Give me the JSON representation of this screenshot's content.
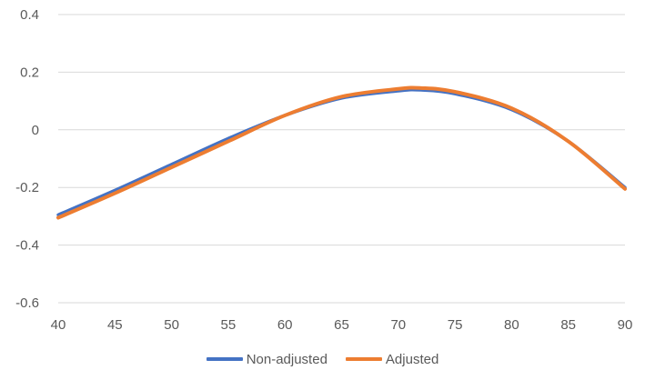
{
  "chart_data": {
    "type": "line",
    "title": "",
    "xlabel": "",
    "ylabel": "",
    "xlim": [
      40,
      90
    ],
    "ylim": [
      -0.6,
      0.4
    ],
    "x_ticks": [
      "40",
      "45",
      "50",
      "55",
      "60",
      "65",
      "70",
      "75",
      "80",
      "85",
      "90"
    ],
    "y_ticks": [
      "0.4",
      "0.2",
      "0",
      "-0.2",
      "-0.4",
      "-0.6"
    ],
    "grid": "horizontal",
    "legend_position": "bottom-center",
    "x": [
      40,
      45,
      50,
      55,
      60,
      65,
      70,
      72,
      75,
      80,
      85,
      90
    ],
    "series": [
      {
        "name": "Non-adjusted",
        "color": "#4472C4",
        "values": [
          -0.295,
          -0.21,
          -0.12,
          -0.03,
          0.05,
          0.11,
          0.135,
          0.138,
          0.125,
          0.07,
          -0.04,
          -0.2
        ]
      },
      {
        "name": "Adjusted",
        "color": "#ED7D31",
        "values": [
          -0.305,
          -0.22,
          -0.13,
          -0.04,
          0.05,
          0.115,
          0.142,
          0.145,
          0.132,
          0.075,
          -0.04,
          -0.205
        ]
      }
    ]
  }
}
